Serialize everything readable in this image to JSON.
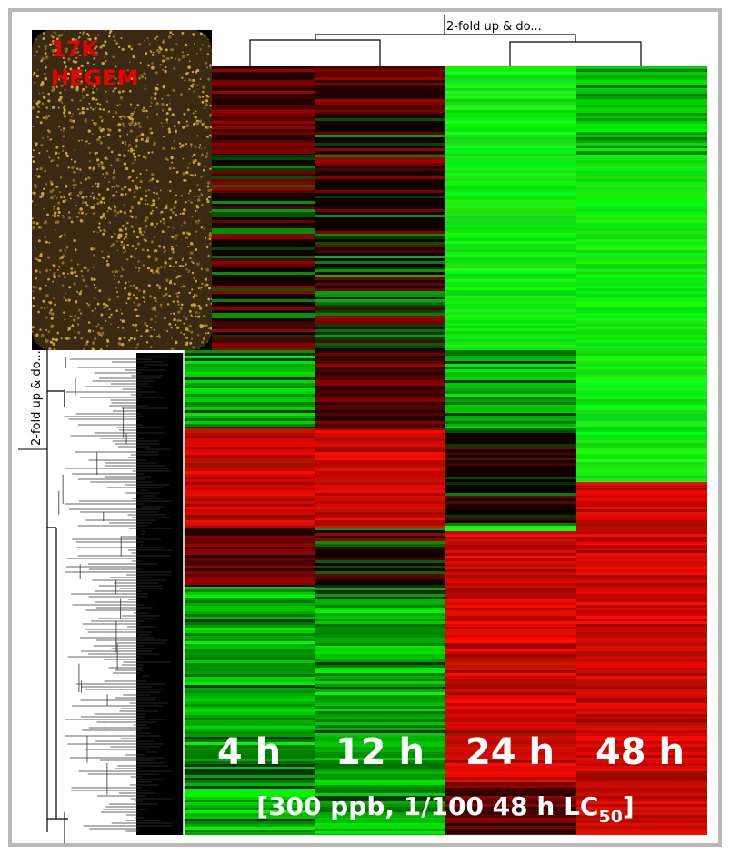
{
  "top_label": "2-fold up & do...",
  "side_label": "2-fold up & do...",
  "inset": {
    "line1": "17K",
    "line2": "HEGEM"
  },
  "columns": [
    "4 h",
    "12 h",
    "24 h",
    "48 h"
  ],
  "caption": {
    "main": "[300 ppb, 1/100 48 h LC",
    "subscript": "50",
    "close": "]"
  }
}
